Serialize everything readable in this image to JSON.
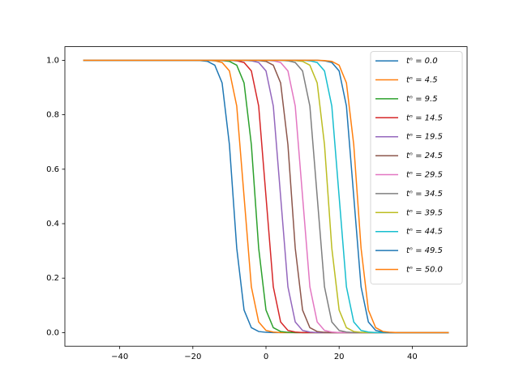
{
  "chart_data": {
    "type": "line",
    "x": [
      -50,
      -48,
      -46,
      -44,
      -42,
      -40,
      -38,
      -36,
      -34,
      -32,
      -30,
      -28,
      -26,
      -24,
      -22,
      -20,
      -18,
      -16,
      -14,
      -12,
      -10,
      -8,
      -6,
      -4,
      -2,
      0,
      2,
      4,
      6,
      8,
      10,
      12,
      14,
      16,
      18,
      20,
      22,
      24,
      26,
      28,
      30,
      32,
      34,
      36,
      38,
      40,
      42,
      44,
      46,
      48,
      50
    ],
    "xlim": [
      -55,
      55
    ],
    "ylim": [
      -0.05,
      1.05
    ],
    "xticks": [
      {
        "value": -40,
        "label": "−40"
      },
      {
        "value": -20,
        "label": "−20"
      },
      0,
      20,
      40
    ],
    "yticks": [
      {
        "value": 0,
        "label": "0.0"
      },
      0.2,
      0.4,
      0.6,
      0.8,
      {
        "value": 1,
        "label": "1.0"
      }
    ],
    "legend": "upper right",
    "series": [
      {
        "name": "tⁿ = 0.0",
        "color": "#1f77b4",
        "values": [
          1,
          1,
          1,
          1,
          1,
          1,
          1,
          1,
          1,
          1,
          1,
          1,
          1,
          1,
          1,
          1,
          0.999,
          0.996,
          0.982,
          0.917,
          0.69,
          0.31,
          0.083,
          0.018,
          0.004,
          0.001,
          0,
          0,
          0,
          0,
          0,
          0,
          0,
          0,
          0,
          0,
          0,
          0,
          0,
          0,
          0,
          0,
          0,
          0,
          0,
          0,
          0,
          0,
          0,
          0,
          0
        ]
      },
      {
        "name": "tⁿ = 4.5",
        "color": "#ff7f0e",
        "values": [
          1,
          1,
          1,
          1,
          1,
          1,
          1,
          1,
          1,
          1,
          1,
          1,
          1,
          1,
          1,
          1,
          1,
          1,
          0.998,
          0.992,
          0.961,
          0.832,
          0.5,
          0.168,
          0.039,
          0.008,
          0.002,
          0,
          0,
          0,
          0,
          0,
          0,
          0,
          0,
          0,
          0,
          0,
          0,
          0,
          0,
          0,
          0,
          0,
          0,
          0,
          0,
          0,
          0,
          0,
          0
        ]
      },
      {
        "name": "tⁿ = 9.5",
        "color": "#2ca02c",
        "values": [
          1,
          1,
          1,
          1,
          1,
          1,
          1,
          1,
          1,
          1,
          1,
          1,
          1,
          1,
          1,
          1,
          1,
          1,
          1,
          0.999,
          0.996,
          0.982,
          0.917,
          0.69,
          0.31,
          0.083,
          0.018,
          0.004,
          0.001,
          0,
          0,
          0,
          0,
          0,
          0,
          0,
          0,
          0,
          0,
          0,
          0,
          0,
          0,
          0,
          0,
          0,
          0,
          0,
          0,
          0,
          0
        ]
      },
      {
        "name": "tⁿ = 14.5",
        "color": "#d62728",
        "values": [
          1,
          1,
          1,
          1,
          1,
          1,
          1,
          1,
          1,
          1,
          1,
          1,
          1,
          1,
          1,
          1,
          1,
          1,
          1,
          1,
          1,
          0.998,
          0.992,
          0.961,
          0.832,
          0.5,
          0.168,
          0.039,
          0.008,
          0.002,
          0,
          0,
          0,
          0,
          0,
          0,
          0,
          0,
          0,
          0,
          0,
          0,
          0,
          0,
          0,
          0,
          0,
          0,
          0,
          0,
          0
        ]
      },
      {
        "name": "tⁿ = 19.5",
        "color": "#9467bd",
        "values": [
          1,
          1,
          1,
          1,
          1,
          1,
          1,
          1,
          1,
          1,
          1,
          1,
          1,
          1,
          1,
          1,
          1,
          1,
          1,
          1,
          1,
          1,
          1,
          0.998,
          0.992,
          0.961,
          0.832,
          0.5,
          0.168,
          0.039,
          0.008,
          0.002,
          0,
          0,
          0,
          0,
          0,
          0,
          0,
          0,
          0,
          0,
          0,
          0,
          0,
          0,
          0,
          0,
          0,
          0,
          0
        ]
      },
      {
        "name": "tⁿ = 24.5",
        "color": "#8c564b",
        "values": [
          1,
          1,
          1,
          1,
          1,
          1,
          1,
          1,
          1,
          1,
          1,
          1,
          1,
          1,
          1,
          1,
          1,
          1,
          1,
          1,
          1,
          1,
          1,
          1,
          0.999,
          0.996,
          0.982,
          0.917,
          0.69,
          0.31,
          0.083,
          0.018,
          0.004,
          0.001,
          0,
          0,
          0,
          0,
          0,
          0,
          0,
          0,
          0,
          0,
          0,
          0,
          0,
          0,
          0,
          0,
          0
        ]
      },
      {
        "name": "tⁿ = 29.5",
        "color": "#e377c2",
        "values": [
          1,
          1,
          1,
          1,
          1,
          1,
          1,
          1,
          1,
          1,
          1,
          1,
          1,
          1,
          1,
          1,
          1,
          1,
          1,
          1,
          1,
          1,
          1,
          1,
          1,
          1,
          0.998,
          0.992,
          0.961,
          0.832,
          0.5,
          0.168,
          0.039,
          0.008,
          0.002,
          0,
          0,
          0,
          0,
          0,
          0,
          0,
          0,
          0,
          0,
          0,
          0,
          0,
          0,
          0,
          0
        ]
      },
      {
        "name": "tⁿ = 34.5",
        "color": "#7f7f7f",
        "values": [
          1,
          1,
          1,
          1,
          1,
          1,
          1,
          1,
          1,
          1,
          1,
          1,
          1,
          1,
          1,
          1,
          1,
          1,
          1,
          1,
          1,
          1,
          1,
          1,
          1,
          1,
          1,
          1,
          0.998,
          0.992,
          0.961,
          0.832,
          0.5,
          0.168,
          0.039,
          0.008,
          0.002,
          0,
          0,
          0,
          0,
          0,
          0,
          0,
          0,
          0,
          0,
          0,
          0,
          0,
          0
        ]
      },
      {
        "name": "tⁿ = 39.5",
        "color": "#bcbd22",
        "values": [
          1,
          1,
          1,
          1,
          1,
          1,
          1,
          1,
          1,
          1,
          1,
          1,
          1,
          1,
          1,
          1,
          1,
          1,
          1,
          1,
          1,
          1,
          1,
          1,
          1,
          1,
          1,
          1,
          1,
          0.999,
          0.996,
          0.982,
          0.917,
          0.69,
          0.31,
          0.083,
          0.018,
          0.004,
          0.001,
          0,
          0,
          0,
          0,
          0,
          0,
          0,
          0,
          0,
          0,
          0,
          0
        ]
      },
      {
        "name": "tⁿ = 44.5",
        "color": "#17becf",
        "values": [
          1,
          1,
          1,
          1,
          1,
          1,
          1,
          1,
          1,
          1,
          1,
          1,
          1,
          1,
          1,
          1,
          1,
          1,
          1,
          1,
          1,
          1,
          1,
          1,
          1,
          1,
          1,
          1,
          1,
          1,
          1,
          0.998,
          0.992,
          0.961,
          0.832,
          0.5,
          0.168,
          0.039,
          0.008,
          0.002,
          0,
          0,
          0,
          0,
          0,
          0,
          0,
          0,
          0,
          0,
          0
        ]
      },
      {
        "name": "tⁿ = 49.5",
        "color": "#1f77b4",
        "values": [
          1,
          1,
          1,
          1,
          1,
          1,
          1,
          1,
          1,
          1,
          1,
          1,
          1,
          1,
          1,
          1,
          1,
          1,
          1,
          1,
          1,
          1,
          1,
          1,
          1,
          1,
          1,
          1,
          1,
          1,
          1,
          1,
          1,
          0.998,
          0.992,
          0.961,
          0.832,
          0.5,
          0.168,
          0.039,
          0.008,
          0.002,
          0,
          0,
          0,
          0,
          0,
          0,
          0,
          0,
          0
        ]
      },
      {
        "name": "tⁿ = 50.0",
        "color": "#ff7f0e",
        "values": [
          1,
          1,
          1,
          1,
          1,
          1,
          1,
          1,
          1,
          1,
          1,
          1,
          1,
          1,
          1,
          1,
          1,
          1,
          1,
          1,
          1,
          1,
          1,
          1,
          1,
          1,
          1,
          1,
          1,
          1,
          1,
          1,
          1,
          0.999,
          0.996,
          0.982,
          0.917,
          0.69,
          0.31,
          0.083,
          0.018,
          0.004,
          0.001,
          0,
          0,
          0,
          0,
          0,
          0,
          0,
          0
        ]
      }
    ]
  }
}
